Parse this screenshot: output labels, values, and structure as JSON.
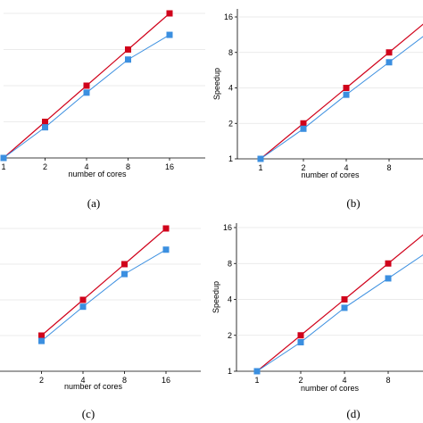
{
  "chart_data": [
    {
      "type": "line",
      "panel_label": "(a)",
      "xlabel": "number of cores",
      "ylabel": "",
      "x_scale": "log2",
      "y_scale": "log2",
      "x_ticks": [
        1,
        2,
        4,
        8,
        16
      ],
      "y_ticks": [],
      "show_y_tick_labels": false,
      "colors": [
        "#d0021b",
        "#3b8fe0"
      ],
      "series": [
        {
          "x": [
            1,
            2,
            4,
            8,
            16
          ],
          "y": [
            1,
            2,
            4,
            8,
            16
          ]
        },
        {
          "x": [
            1,
            2,
            4,
            8,
            16
          ],
          "y": [
            1,
            1.8,
            3.5,
            6.6,
            10.6
          ]
        }
      ]
    },
    {
      "type": "line",
      "panel_label": "(b)",
      "xlabel": "number of cores",
      "ylabel": "Speedup",
      "x_scale": "log2",
      "y_scale": "log2",
      "x_ticks": [
        1,
        2,
        4,
        8
      ],
      "y_ticks": [
        1,
        2,
        4,
        8,
        16
      ],
      "show_y_tick_labels": true,
      "colors": [
        "#d0021b",
        "#3b8fe0"
      ],
      "series": [
        {
          "x": [
            1,
            2,
            4,
            8
          ],
          "y": [
            1,
            2,
            4,
            8
          ]
        },
        {
          "x": [
            1,
            2,
            4,
            8
          ],
          "y": [
            1,
            1.8,
            3.5,
            6.6
          ]
        }
      ]
    },
    {
      "type": "line",
      "panel_label": "(c)",
      "xlabel": "number of cores",
      "ylabel": "",
      "x_scale": "log2",
      "y_scale": "log2",
      "x_ticks": [
        2,
        4,
        8,
        16
      ],
      "y_ticks": [],
      "show_y_tick_labels": false,
      "colors": [
        "#d0021b",
        "#3b8fe0"
      ],
      "series": [
        {
          "x": [
            2,
            4,
            8,
            16
          ],
          "y": [
            2,
            4,
            8,
            16
          ]
        },
        {
          "x": [
            2,
            4,
            8,
            16
          ],
          "y": [
            1.8,
            3.5,
            6.6,
            10.6
          ]
        }
      ]
    },
    {
      "type": "line",
      "panel_label": "(d)",
      "xlabel": "number of cores",
      "ylabel": "Speedup",
      "x_scale": "log2",
      "y_scale": "log2",
      "x_ticks": [
        1,
        2,
        4,
        8
      ],
      "y_ticks": [
        1,
        2,
        4,
        8,
        16
      ],
      "show_y_tick_labels": true,
      "colors": [
        "#d0021b",
        "#3b8fe0"
      ],
      "series": [
        {
          "x": [
            1,
            2,
            4,
            8
          ],
          "y": [
            1,
            2,
            4,
            8
          ]
        },
        {
          "x": [
            1,
            2,
            4,
            8
          ],
          "y": [
            1,
            1.75,
            3.4,
            6.0
          ]
        }
      ]
    }
  ]
}
